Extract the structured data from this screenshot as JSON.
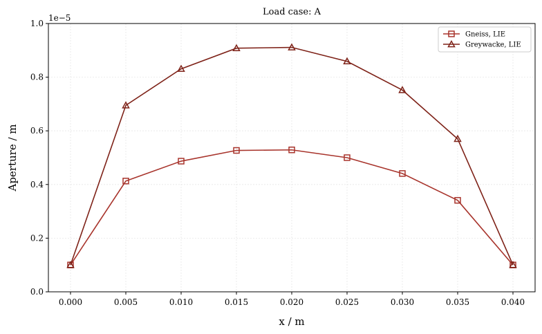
{
  "chart_data": {
    "type": "line",
    "title": "Load case: A",
    "xlabel": "x / m",
    "ylabel": "Aperture / m",
    "y_offset_label": "1e−5",
    "x": [
      0.0,
      0.005,
      0.01,
      0.015,
      0.02,
      0.025,
      0.03,
      0.035,
      0.04
    ],
    "xlim": [
      -0.002,
      0.042
    ],
    "ylim": [
      0,
      1.0
    ],
    "x_ticks": [
      0.0,
      0.005,
      0.01,
      0.015,
      0.02,
      0.025,
      0.03,
      0.035,
      0.04
    ],
    "x_tick_labels": [
      "0.000",
      "0.005",
      "0.010",
      "0.015",
      "0.020",
      "0.025",
      "0.030",
      "0.035",
      "0.040"
    ],
    "y_ticks": [
      0.0,
      0.2,
      0.4,
      0.6,
      0.8,
      1.0
    ],
    "y_tick_labels": [
      "0.0",
      "0.2",
      "0.4",
      "0.6",
      "0.8",
      "1.0"
    ],
    "grid": true,
    "legend_position": "top-right",
    "series": [
      {
        "name": "Gneiss, LIE",
        "marker": "square",
        "color": "#a8342c",
        "values": [
          0.1,
          0.413,
          0.487,
          0.527,
          0.529,
          0.5,
          0.441,
          0.341,
          0.1
        ]
      },
      {
        "name": "Greywacke, LIE",
        "marker": "triangle",
        "color": "#7e2218",
        "values": [
          0.1,
          0.695,
          0.831,
          0.908,
          0.911,
          0.859,
          0.752,
          0.57,
          0.1
        ]
      }
    ]
  }
}
